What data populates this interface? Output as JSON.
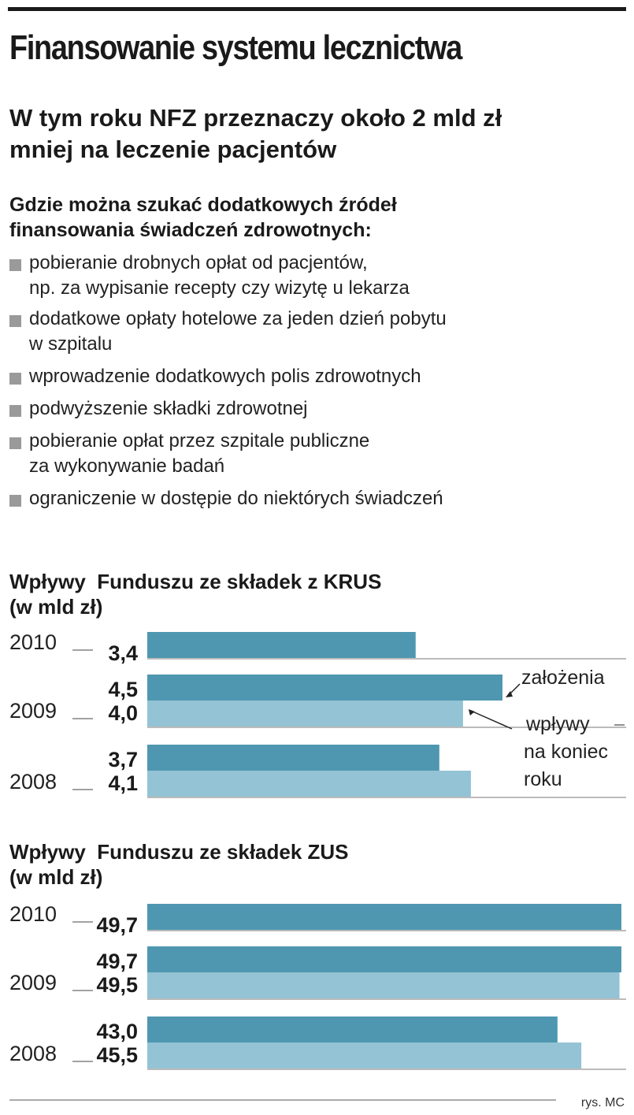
{
  "header": {
    "title": "Finansowanie systemu lecznictwa",
    "subtitle_lines": [
      "W tym roku NFZ przeznaczy około 2 mld zł",
      "mniej na leczenie pacjentów"
    ]
  },
  "sources": {
    "heading_lines": [
      "Gdzie można szukać dodatkowych źródeł",
      "finansowania świadczeń zdrowotnych:"
    ],
    "items": [
      {
        "lines": [
          "pobieranie drobnych opłat od pacjentów,",
          "np. za wypisanie recepty czy wizytę u lekarza"
        ]
      },
      {
        "lines": [
          "dodatkowe opłaty hotelowe za jeden dzień pobytu",
          "w szpitalu"
        ]
      },
      {
        "lines": [
          "wprowadzenie dodatkowych polis zdrowotnych"
        ]
      },
      {
        "lines": [
          "podwyższenie składki zdrowotnej"
        ]
      },
      {
        "lines": [
          "pobieranie opłat przez szpitale publiczne",
          "za wykonywanie badań"
        ]
      },
      {
        "lines": [
          "ograniczenie w dostępie do niektórych świadczeń"
        ]
      }
    ]
  },
  "colors": {
    "dark_bar": "#4f97b0",
    "light_bar": "#93c3d4",
    "bullet": "#9a9a9a",
    "text": "#1a1a1a"
  },
  "chart_data": [
    {
      "type": "bar",
      "orientation": "horizontal",
      "title_lines": [
        "Wpływy  Funduszu ze składek z KRUS",
        "(w mld zł)"
      ],
      "categories": [
        "2010",
        "2009",
        "2008"
      ],
      "series": [
        {
          "name": "założenia",
          "color": "#4f97b0",
          "values": [
            3.4,
            4.5,
            3.7
          ],
          "labels": [
            "3,4",
            "4,5",
            "3,7"
          ]
        },
        {
          "name": "wpływy na koniec roku",
          "color": "#93c3d4",
          "values": [
            null,
            4.0,
            4.1
          ],
          "labels": [
            null,
            "4,0",
            "4,1"
          ]
        }
      ],
      "annotations": [
        {
          "text_lines": [
            "założenia"
          ],
          "points_to": {
            "category": "2009",
            "series": "założenia"
          }
        },
        {
          "text_lines": [
            "wpływy",
            "na koniec",
            "roku"
          ],
          "points_to": {
            "category": "2009",
            "series": "wpływy na koniec roku"
          }
        }
      ],
      "xlim": [
        0,
        4.5
      ]
    },
    {
      "type": "bar",
      "orientation": "horizontal",
      "title_lines": [
        "Wpływy  Funduszu ze składek ZUS",
        "(w mld zł)"
      ],
      "categories": [
        "2010",
        "2009",
        "2008"
      ],
      "series": [
        {
          "name": "założenia",
          "color": "#4f97b0",
          "values": [
            49.7,
            49.7,
            43.0
          ],
          "labels": [
            "49,7",
            "49,7",
            "43,0"
          ]
        },
        {
          "name": "wpływy na koniec roku",
          "color": "#93c3d4",
          "values": [
            null,
            49.5,
            45.5
          ],
          "labels": [
            null,
            "49,5",
            "45,5"
          ]
        }
      ],
      "xlim": [
        0,
        49.7
      ]
    }
  ],
  "footer": {
    "credit": "rys. MC"
  }
}
